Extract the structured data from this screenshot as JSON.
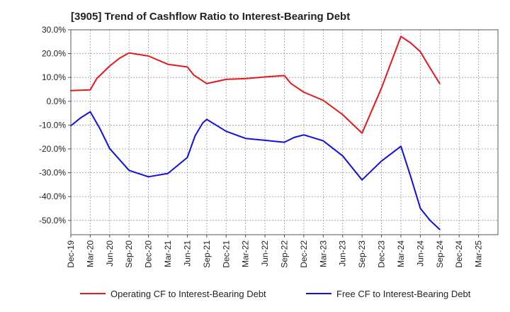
{
  "chart_data": {
    "type": "line",
    "title": "[3905]  Trend of Cashflow Ratio to Interest-Bearing Debt",
    "xlabel": "",
    "ylabel": "",
    "x_tick_labels": [
      "Dec-19",
      "Mar-20",
      "Jun-20",
      "Sep-20",
      "Dec-20",
      "Mar-21",
      "Jun-21",
      "Sep-21",
      "Dec-21",
      "Mar-22",
      "Jun-22",
      "Sep-22",
      "Dec-22",
      "Mar-23",
      "Jun-23",
      "Sep-23",
      "Dec-23",
      "Mar-24",
      "Jun-24",
      "Sep-24",
      "Dec-24",
      "Mar-25"
    ],
    "y_tick_labels": [
      "30.0%",
      "20.0%",
      "10.0%",
      "0.0%",
      "-10.0%",
      "-20.0%",
      "-30.0%",
      "-40.0%",
      "-50.0%"
    ],
    "y_ticks": [
      30,
      20,
      10,
      0,
      -10,
      -20,
      -30,
      -40,
      -50
    ],
    "ylim": [
      -56,
      30
    ],
    "y_unit": "%",
    "grid": true,
    "legend_position": "bottom",
    "series": [
      {
        "name": "Operating CF to Interest-Bearing Debt",
        "color": "#e31a1c",
        "points": [
          [
            0,
            4.5
          ],
          [
            1,
            4.8
          ],
          [
            1.33,
            9.5
          ],
          [
            2,
            14.8
          ],
          [
            2.5,
            18.0
          ],
          [
            3,
            20.3
          ],
          [
            4,
            19.0
          ],
          [
            5,
            15.5
          ],
          [
            6,
            14.4
          ],
          [
            6.33,
            11.0
          ],
          [
            7,
            7.4
          ],
          [
            8,
            9.2
          ],
          [
            9,
            9.5
          ],
          [
            10,
            10.2
          ],
          [
            11,
            10.8
          ],
          [
            11.33,
            7.5
          ],
          [
            12,
            3.8
          ],
          [
            13,
            0.4
          ],
          [
            14,
            -5.6
          ],
          [
            15,
            -13.4
          ],
          [
            16,
            5.5
          ],
          [
            17,
            27.2
          ],
          [
            17.5,
            24.5
          ],
          [
            18,
            20.8
          ],
          [
            18.5,
            14.0
          ],
          [
            19,
            7.4
          ]
        ]
      },
      {
        "name": "Free CF to Interest-Bearing Debt",
        "color": "#1010e0",
        "points": [
          [
            0,
            -10.3
          ],
          [
            0.5,
            -7.0
          ],
          [
            1,
            -4.4
          ],
          [
            1.5,
            -11.5
          ],
          [
            2,
            -19.8
          ],
          [
            3,
            -29.0
          ],
          [
            4,
            -31.7
          ],
          [
            5,
            -30.3
          ],
          [
            6,
            -23.6
          ],
          [
            6.4,
            -14.5
          ],
          [
            6.8,
            -9.0
          ],
          [
            7,
            -7.6
          ],
          [
            8,
            -12.6
          ],
          [
            9,
            -15.6
          ],
          [
            10,
            -16.4
          ],
          [
            11,
            -17.2
          ],
          [
            11.5,
            -15.2
          ],
          [
            12,
            -14.1
          ],
          [
            13,
            -16.6
          ],
          [
            14,
            -22.9
          ],
          [
            15,
            -33.0
          ],
          [
            16,
            -25.1
          ],
          [
            17,
            -18.9
          ],
          [
            17.5,
            -31.5
          ],
          [
            18,
            -44.9
          ],
          [
            18.5,
            -50.0
          ],
          [
            19,
            -53.8
          ]
        ]
      }
    ]
  }
}
